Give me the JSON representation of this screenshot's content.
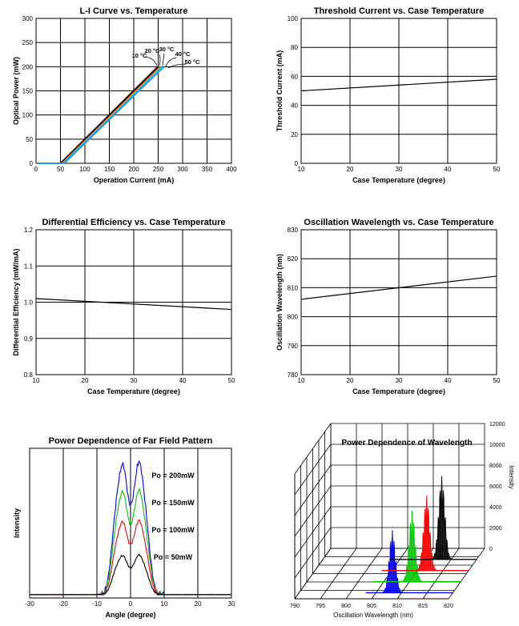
{
  "chart_data": [
    {
      "id": "li",
      "type": "line",
      "title": "L-I Curve vs. Temperature",
      "xlabel": "Operation Current (mA)",
      "ylabel": "Optical Power (mW)",
      "xlim": [
        0,
        400
      ],
      "ylim": [
        0,
        300
      ],
      "xticks": [
        0,
        50,
        100,
        150,
        200,
        250,
        300,
        350,
        400
      ],
      "yticks": [
        0,
        50,
        100,
        150,
        200,
        250,
        300
      ],
      "grid": true,
      "series": [
        {
          "name": "10 °C",
          "color": "#000000",
          "threshold": 50,
          "max_power": 200,
          "slope": 1.005
        },
        {
          "name": "20 °C",
          "color": "#8b0000",
          "threshold": 52,
          "max_power": 200,
          "slope": 1.0
        },
        {
          "name": "30 °C",
          "color": "#ffa500",
          "threshold": 54,
          "max_power": 200,
          "slope": 0.995
        },
        {
          "name": "40 °C",
          "color": "#00bfff",
          "threshold": 56,
          "max_power": 200,
          "slope": 0.99
        },
        {
          "name": "50 °C",
          "color": "#1e90ff",
          "threshold": 58,
          "max_power": 200,
          "slope": 0.98
        }
      ]
    },
    {
      "id": "th",
      "type": "line",
      "title": "Threshold Current vs. Case Temperature",
      "xlabel": "Case Temperature (degree)",
      "ylabel": "Threshold Current (mA)",
      "xlim": [
        10,
        50
      ],
      "ylim": [
        0,
        100
      ],
      "xticks": [
        10,
        20,
        30,
        40,
        50
      ],
      "yticks": [
        0,
        20,
        40,
        60,
        80,
        100
      ],
      "grid": true,
      "series": [
        {
          "x": [
            10,
            50
          ],
          "y": [
            50,
            58
          ],
          "color": "#000000"
        }
      ]
    },
    {
      "id": "de",
      "type": "line",
      "title": "Differential Efficiency vs. Case Temperature",
      "xlabel": "Case Temperature (degree)",
      "ylabel": "Differential Efficiency (mW/mA)",
      "xlim": [
        10,
        50
      ],
      "ylim": [
        0.8,
        1.2
      ],
      "xticks": [
        10,
        20,
        30,
        40,
        50
      ],
      "yticks": [
        0.8,
        0.9,
        1.0,
        1.1,
        1.2
      ],
      "ytick_labels": [
        "0.8",
        "0.9",
        "1.0",
        "1.1",
        "1.2"
      ],
      "grid": true,
      "series": [
        {
          "x": [
            10,
            50
          ],
          "y": [
            1.01,
            0.98
          ],
          "color": "#000000"
        }
      ]
    },
    {
      "id": "wl",
      "type": "line",
      "title": "Oscillation Wavelength vs. Case Temperature",
      "xlabel": "Case Temperature (degree)",
      "ylabel": "Oscillation Wavelength (nm)",
      "xlim": [
        10,
        50
      ],
      "ylim": [
        780,
        830
      ],
      "xticks": [
        10,
        20,
        30,
        40,
        50
      ],
      "yticks": [
        780,
        790,
        800,
        810,
        820,
        830
      ],
      "grid": true,
      "series": [
        {
          "x": [
            10,
            50
          ],
          "y": [
            806,
            814
          ],
          "color": "#000000"
        }
      ]
    },
    {
      "id": "ff",
      "type": "line",
      "title": "Power Dependence of Far Field Pattern",
      "xlabel": "Angle (degree)",
      "ylabel": "Intensity",
      "xlim": [
        -30,
        30
      ],
      "xticks": [
        -30,
        -20,
        -10,
        0,
        10,
        20,
        30
      ],
      "grid": "vertical",
      "series": [
        {
          "name": "Po = 200mW",
          "color": "#0000ff",
          "amplitude": 1.0
        },
        {
          "name": "Po = 150mW",
          "color": "#00cc00",
          "amplitude": 0.79
        },
        {
          "name": "Po = 100mW",
          "color": "#ff0000",
          "amplitude": 0.56
        },
        {
          "name": "Po = 50mW",
          "color": "#000000",
          "amplitude": 0.3
        }
      ]
    },
    {
      "id": "sp",
      "type": "area",
      "title": "Power Dependence of Wavelength",
      "xlabel": "Oscillation Wavelength (nm)",
      "zlabel": "Intensity",
      "xlim": [
        790,
        820
      ],
      "xticks": [
        790,
        795,
        800,
        805,
        810,
        815,
        820
      ],
      "zticks": [
        0,
        2000,
        4000,
        6000,
        8000,
        10000,
        12000
      ],
      "series": [
        {
          "color": "#0000ff",
          "center": 808.2,
          "peak": 6000
        },
        {
          "color": "#00cc00",
          "center": 810.5,
          "peak": 6800
        },
        {
          "color": "#ff0000",
          "center": 811.8,
          "peak": 7200
        },
        {
          "color": "#000000",
          "center": 813.2,
          "peak": 8000
        }
      ]
    }
  ]
}
